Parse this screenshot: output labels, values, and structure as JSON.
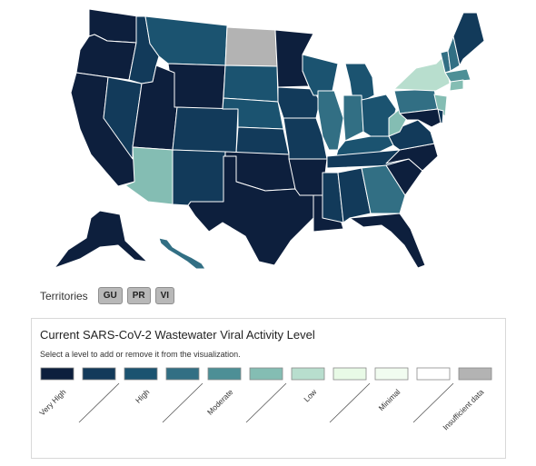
{
  "map": {
    "states": [
      {
        "id": "WA",
        "level": 0
      },
      {
        "id": "OR",
        "level": 0
      },
      {
        "id": "CA",
        "level": 0
      },
      {
        "id": "NV",
        "level": 1
      },
      {
        "id": "ID",
        "level": 1
      },
      {
        "id": "MT",
        "level": 2
      },
      {
        "id": "WY",
        "level": 0
      },
      {
        "id": "UT",
        "level": 0
      },
      {
        "id": "AZ",
        "level": 5
      },
      {
        "id": "CO",
        "level": 1
      },
      {
        "id": "NM",
        "level": 1
      },
      {
        "id": "ND",
        "level": 10
      },
      {
        "id": "SD",
        "level": 2
      },
      {
        "id": "NE",
        "level": 2
      },
      {
        "id": "KS",
        "level": 1
      },
      {
        "id": "OK",
        "level": 0
      },
      {
        "id": "TX",
        "level": 0
      },
      {
        "id": "MN",
        "level": 0
      },
      {
        "id": "IA",
        "level": 1
      },
      {
        "id": "MO",
        "level": 1
      },
      {
        "id": "AR",
        "level": 0
      },
      {
        "id": "LA",
        "level": 0
      },
      {
        "id": "WI",
        "level": 2
      },
      {
        "id": "IL",
        "level": 3
      },
      {
        "id": "MI",
        "level": 2
      },
      {
        "id": "IN",
        "level": 3
      },
      {
        "id": "OH",
        "level": 2
      },
      {
        "id": "KY",
        "level": 2
      },
      {
        "id": "TN",
        "level": 1
      },
      {
        "id": "MS",
        "level": 1
      },
      {
        "id": "AL",
        "level": 1
      },
      {
        "id": "GA",
        "level": 3
      },
      {
        "id": "FL",
        "level": 0
      },
      {
        "id": "SC",
        "level": 0
      },
      {
        "id": "NC",
        "level": 0
      },
      {
        "id": "VA",
        "level": 1
      },
      {
        "id": "WV",
        "level": 5
      },
      {
        "id": "PA",
        "level": 3
      },
      {
        "id": "NY",
        "level": 6
      },
      {
        "id": "VT",
        "level": 3
      },
      {
        "id": "NH",
        "level": 3
      },
      {
        "id": "ME",
        "level": 1
      },
      {
        "id": "MA",
        "level": 4
      },
      {
        "id": "CT",
        "level": 5
      },
      {
        "id": "NJ",
        "level": 5
      },
      {
        "id": "DE",
        "level": 1
      },
      {
        "id": "MD",
        "level": 0
      },
      {
        "id": "AK",
        "level": 0
      },
      {
        "id": "HI",
        "level": 3
      }
    ]
  },
  "territories": {
    "label": "Territories",
    "buttons": [
      "GU",
      "PR",
      "VI"
    ]
  },
  "legend": {
    "title": "Current SARS-CoV-2 Wastewater Viral Activity Level",
    "hint": "Select a level to add or remove it from the visualization.",
    "levels": [
      {
        "color": "#0d1f3d",
        "label": "Very High"
      },
      {
        "color": "#123a5a",
        "label": ""
      },
      {
        "color": "#1b5370",
        "label": "High"
      },
      {
        "color": "#326f84",
        "label": ""
      },
      {
        "color": "#4d8f96",
        "label": "Moderate"
      },
      {
        "color": "#84bdb3",
        "label": ""
      },
      {
        "color": "#b8dece",
        "label": "Low"
      },
      {
        "color": "#e8fae6",
        "label": ""
      },
      {
        "color": "#f1fcf0",
        "label": "Minimal"
      },
      {
        "color": "#ffffff",
        "label": ""
      },
      {
        "color": "#b3b3b3",
        "label": "Insufficient data"
      }
    ]
  }
}
